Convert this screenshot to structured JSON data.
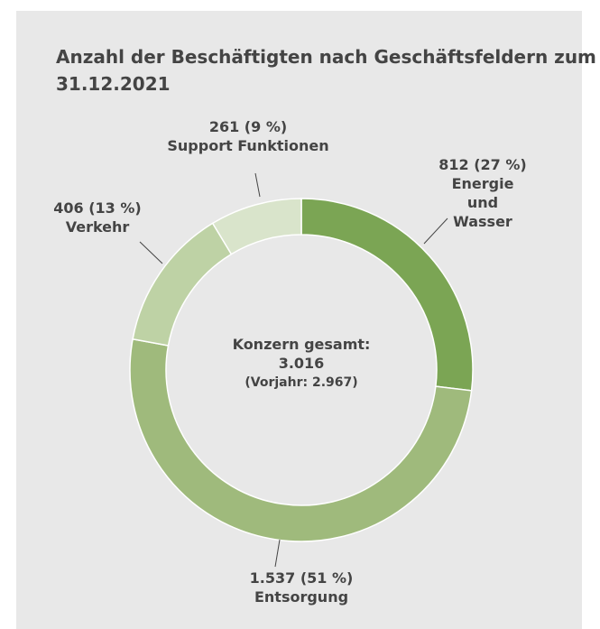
{
  "chart_data": {
    "type": "donut",
    "title": "Anzahl der Beschäftigten nach Geschäftsfeldern zum 31.12.2021",
    "categories": [
      "Energie und Wasser",
      "Entsorgung",
      "Verkehr",
      "Support Funktionen"
    ],
    "values": [
      812,
      1537,
      406,
      261
    ],
    "value_labels": [
      "812 (27 %)",
      "1.537 (51 %)",
      "406 (13 %)",
      "261 (9 %)"
    ],
    "colors": [
      "#7ba554",
      "#9fba7c",
      "#bed2a5",
      "#d9e4cb"
    ],
    "center_label": [
      "Konzern gesamt:",
      "3.016",
      "(Vorjahr: 2.967)"
    ]
  }
}
